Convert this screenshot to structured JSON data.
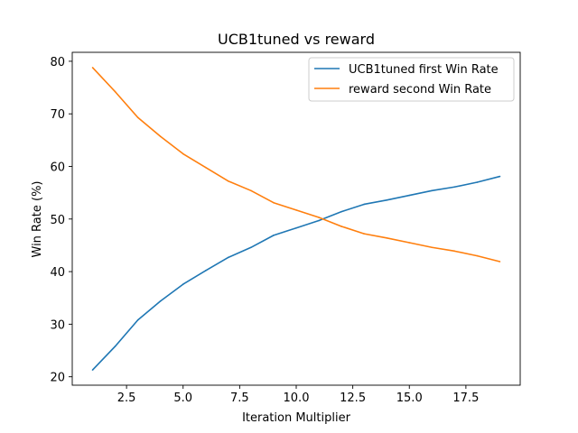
{
  "chart_data": {
    "type": "line",
    "title": "UCB1tuned vs reward",
    "xlabel": "Iteration Multiplier",
    "ylabel": "Win Rate (%)",
    "xlim": [
      0.1,
      19.9
    ],
    "ylim": [
      18.4,
      81.7
    ],
    "xticks": [
      2.5,
      5.0,
      7.5,
      10.0,
      12.5,
      15.0,
      17.5
    ],
    "xtick_labels": [
      "2.5",
      "5.0",
      "7.5",
      "10.0",
      "12.5",
      "15.0",
      "17.5"
    ],
    "yticks": [
      20,
      30,
      40,
      50,
      60,
      70,
      80
    ],
    "ytick_labels": [
      "20",
      "30",
      "40",
      "50",
      "60",
      "70",
      "80"
    ],
    "grid": false,
    "legend_position": "top-right",
    "x": [
      1,
      2,
      3,
      4,
      5,
      6,
      7,
      8,
      9,
      10,
      11,
      12,
      13,
      14,
      15,
      16,
      17,
      18,
      19
    ],
    "series": [
      {
        "name": "UCB1tuned first Win Rate",
        "color": "#1f77b4",
        "values": [
          21.3,
          25.8,
          30.8,
          34.4,
          37.6,
          40.2,
          42.7,
          44.6,
          46.9,
          48.3,
          49.7,
          51.4,
          52.8,
          53.6,
          54.5,
          55.4,
          56.1,
          57.0,
          58.1
        ]
      },
      {
        "name": "reward second Win Rate",
        "color": "#ff7f0e",
        "values": [
          78.8,
          74.2,
          69.3,
          65.7,
          62.4,
          59.8,
          57.2,
          55.4,
          53.1,
          51.7,
          50.3,
          48.6,
          47.2,
          46.4,
          45.5,
          44.6,
          43.9,
          43.0,
          41.9
        ]
      }
    ]
  }
}
